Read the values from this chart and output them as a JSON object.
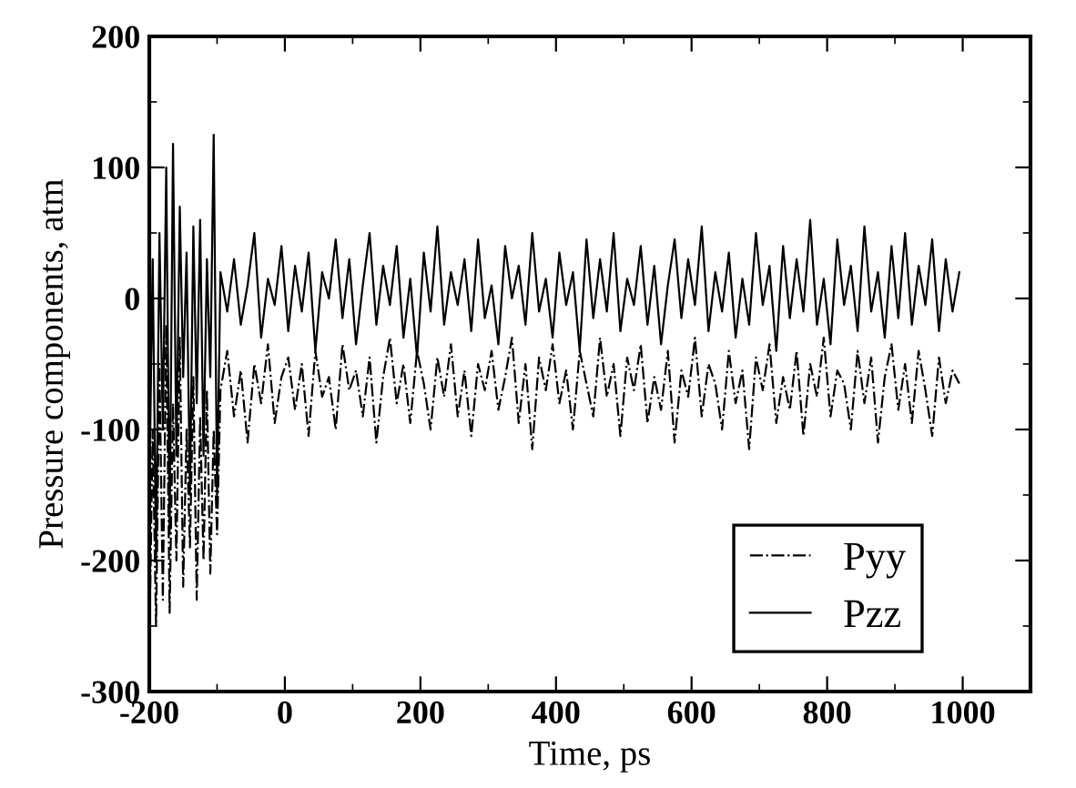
{
  "chart_data": {
    "type": "line",
    "xlabel": "Time, ps",
    "ylabel": "Pressure components, atm",
    "xlim": [
      -200,
      1100
    ],
    "xticks": [
      -200,
      0,
      200,
      400,
      600,
      800,
      1000
    ],
    "ylim": [
      -300,
      200
    ],
    "yticks": [
      -300,
      -200,
      -100,
      0,
      100,
      200
    ],
    "grid": false,
    "legend": "lower right",
    "marker": "none",
    "x": [
      -200,
      -195,
      -190,
      -185,
      -180,
      -175,
      -170,
      -165,
      -160,
      -155,
      -150,
      -145,
      -140,
      -135,
      -130,
      -125,
      -120,
      -115,
      -110,
      -105,
      -100,
      -95,
      -85,
      -75,
      -65,
      -55,
      -45,
      -35,
      -25,
      -15,
      -5,
      5,
      15,
      25,
      35,
      45,
      55,
      65,
      75,
      85,
      95,
      105,
      115,
      125,
      135,
      145,
      155,
      165,
      175,
      185,
      195,
      205,
      215,
      225,
      235,
      245,
      255,
      265,
      275,
      285,
      295,
      305,
      315,
      325,
      335,
      345,
      355,
      365,
      375,
      385,
      395,
      405,
      415,
      425,
      435,
      445,
      455,
      465,
      475,
      485,
      495,
      505,
      515,
      525,
      535,
      545,
      555,
      565,
      575,
      585,
      595,
      605,
      615,
      625,
      635,
      645,
      655,
      665,
      675,
      685,
      695,
      705,
      715,
      725,
      735,
      745,
      755,
      765,
      775,
      785,
      795,
      805,
      815,
      825,
      835,
      845,
      855,
      865,
      875,
      885,
      895,
      905,
      915,
      925,
      935,
      945,
      955,
      965,
      975,
      985,
      995
    ],
    "series": [
      {
        "name": "Pyy",
        "color": "#000000",
        "line_style": "dashdot",
        "values": [
          -270,
          -100,
          -250,
          -50,
          -230,
          -20,
          -240,
          -80,
          -200,
          -30,
          -220,
          -100,
          -190,
          -60,
          -230,
          -90,
          -200,
          -70,
          -210,
          -100,
          -180,
          -70,
          -40,
          -90,
          -55,
          -110,
          -50,
          -80,
          -35,
          -95,
          -60,
          -45,
          -85,
          -50,
          -105,
          -40,
          -75,
          -60,
          -100,
          -35,
          -70,
          -55,
          -90,
          -45,
          -110,
          -60,
          -30,
          -80,
          -50,
          -95,
          -40,
          -65,
          -100,
          -45,
          -75,
          -35,
          -90,
          -55,
          -105,
          -50,
          -70,
          -40,
          -85,
          -60,
          -30,
          -95,
          -50,
          -115,
          -45,
          -70,
          -35,
          -80,
          -55,
          -100,
          -40,
          -65,
          -90,
          -30,
          -75,
          -50,
          -105,
          -45,
          -70,
          -35,
          -95,
          -60,
          -85,
          -40,
          -110,
          -55,
          -75,
          -30,
          -90,
          -50,
          -65,
          -100,
          -40,
          -80,
          -55,
          -115,
          -45,
          -70,
          -35,
          -95,
          -60,
          -85,
          -40,
          -105,
          -50,
          -75,
          -30,
          -90,
          -55,
          -65,
          -100,
          -40,
          -80,
          -45,
          -110,
          -60,
          -35,
          -85,
          -50,
          -95,
          -40,
          -70,
          -105,
          -45,
          -80,
          -55,
          -65
        ]
      },
      {
        "name": "Pzz",
        "color": "#000000",
        "line_style": "solid",
        "values": [
          -150,
          30,
          -200,
          50,
          -100,
          100,
          -180,
          118,
          -120,
          70,
          -60,
          35,
          -150,
          55,
          -80,
          60,
          -120,
          30,
          -60,
          125,
          -150,
          20,
          -10,
          30,
          -20,
          10,
          50,
          -30,
          15,
          -5,
          40,
          -25,
          25,
          -10,
          35,
          -40,
          20,
          0,
          45,
          -15,
          30,
          -35,
          10,
          50,
          -20,
          25,
          -5,
          40,
          -30,
          15,
          -45,
          35,
          -10,
          55,
          -20,
          20,
          -5,
          30,
          -25,
          45,
          -15,
          10,
          -35,
          40,
          0,
          25,
          -20,
          50,
          -10,
          15,
          -30,
          35,
          -5,
          20,
          -40,
          45,
          -15,
          30,
          -10,
          50,
          -25,
          15,
          -5,
          40,
          -20,
          25,
          -35,
          10,
          45,
          -15,
          30,
          -5,
          55,
          -25,
          20,
          -10,
          35,
          -30,
          15,
          -20,
          50,
          -5,
          25,
          -40,
          40,
          -15,
          30,
          -10,
          60,
          -20,
          15,
          -35,
          45,
          -5,
          25,
          -25,
          55,
          -10,
          20,
          -30,
          40,
          -15,
          50,
          -20,
          25,
          -5,
          45,
          -25,
          30,
          -10,
          20
        ]
      }
    ]
  }
}
